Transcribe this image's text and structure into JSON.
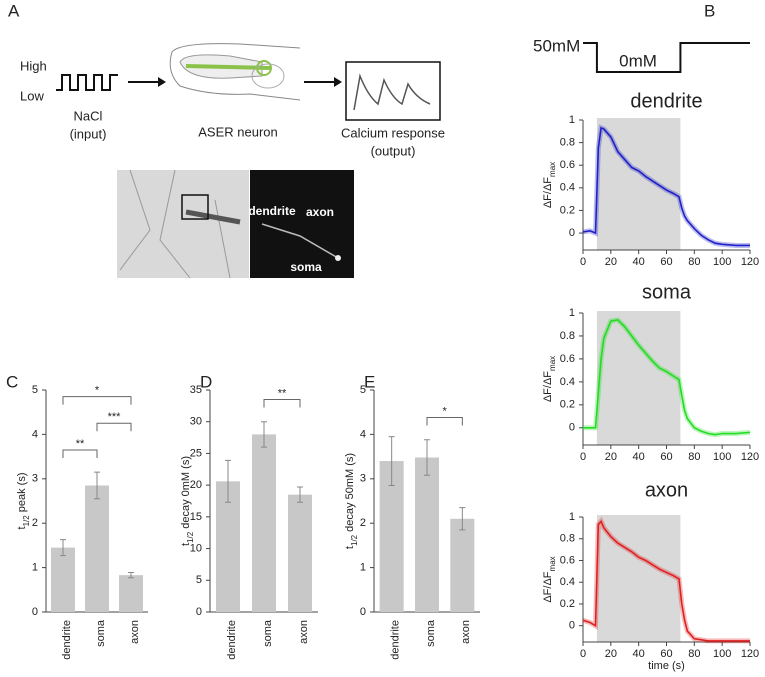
{
  "panel_labels": [
    "A",
    "B",
    "C",
    "D",
    "E"
  ],
  "schematic": {
    "nacl_levels": [
      "High",
      "Low"
    ],
    "input": [
      "NaCl",
      "(input)"
    ],
    "neuron": "ASER neuron",
    "output": [
      "Calcium response",
      "(output)"
    ],
    "image_labels": [
      "dendrite",
      "axon",
      "soma"
    ]
  },
  "stimulus": {
    "high": "50mM",
    "low": "0mM"
  },
  "chart_data": [
    {
      "type": "line",
      "title": "dendrite",
      "ylabel_parts": [
        "ΔF/ΔF",
        "max"
      ],
      "x": [
        0,
        5,
        9,
        11,
        13,
        15,
        20,
        25,
        30,
        35,
        40,
        45,
        50,
        55,
        60,
        65,
        69,
        71,
        73,
        75,
        80,
        85,
        90,
        95,
        100,
        110,
        120
      ],
      "series": [
        {
          "color": "#2020c8",
          "values": [
            0.01,
            0.02,
            0.0,
            0.75,
            0.93,
            0.92,
            0.85,
            0.72,
            0.65,
            0.58,
            0.55,
            0.5,
            0.46,
            0.42,
            0.38,
            0.35,
            0.32,
            0.22,
            0.15,
            0.11,
            0.04,
            -0.02,
            -0.06,
            -0.09,
            -0.1,
            -0.11,
            -0.11
          ]
        }
      ],
      "xlim": [
        0,
        120
      ],
      "xticks": [
        0,
        20,
        40,
        60,
        80,
        100,
        120
      ],
      "ylim": [
        -0.15,
        1
      ],
      "yticks": [
        0,
        0.2,
        0.4,
        0.6,
        0.8,
        1
      ],
      "shaded": [
        10,
        70
      ]
    },
    {
      "type": "line",
      "title": "soma",
      "ylabel_parts": [
        "ΔF/ΔF",
        "max"
      ],
      "x": [
        0,
        5,
        9,
        11,
        13,
        15,
        20,
        25,
        30,
        35,
        40,
        45,
        50,
        55,
        60,
        65,
        69,
        71,
        73,
        75,
        80,
        85,
        90,
        95,
        100,
        110,
        120
      ],
      "series": [
        {
          "color": "#22dd22",
          "values": [
            0,
            0,
            0,
            0.3,
            0.6,
            0.78,
            0.93,
            0.94,
            0.88,
            0.8,
            0.72,
            0.65,
            0.58,
            0.52,
            0.49,
            0.45,
            0.42,
            0.28,
            0.15,
            0.08,
            0.0,
            -0.03,
            -0.05,
            -0.06,
            -0.05,
            -0.05,
            -0.04
          ]
        }
      ],
      "xlim": [
        0,
        120
      ],
      "xticks": [
        0,
        20,
        40,
        60,
        80,
        100,
        120
      ],
      "ylim": [
        -0.15,
        1
      ],
      "yticks": [
        0,
        0.2,
        0.4,
        0.6,
        0.8,
        1
      ],
      "shaded": [
        10,
        70
      ]
    },
    {
      "type": "line",
      "title": "axon",
      "ylabel_parts": [
        "ΔF/ΔF",
        "max"
      ],
      "xlabel": "time (s)",
      "x": [
        0,
        5,
        9,
        11,
        13,
        15,
        20,
        25,
        30,
        35,
        40,
        45,
        50,
        55,
        60,
        65,
        69,
        71,
        73,
        75,
        80,
        85,
        90,
        95,
        100,
        110,
        120
      ],
      "series": [
        {
          "color": "#e02020",
          "values": [
            0.05,
            0.03,
            0.0,
            0.93,
            0.96,
            0.9,
            0.82,
            0.76,
            0.72,
            0.68,
            0.63,
            0.6,
            0.56,
            0.52,
            0.49,
            0.46,
            0.43,
            0.2,
            0.05,
            -0.05,
            -0.12,
            -0.13,
            -0.14,
            -0.14,
            -0.14,
            -0.14,
            -0.14
          ]
        }
      ],
      "xlim": [
        0,
        120
      ],
      "xticks": [
        0,
        20,
        40,
        60,
        80,
        100,
        120
      ],
      "ylim": [
        -0.15,
        1
      ],
      "yticks": [
        0,
        0.2,
        0.4,
        0.6,
        0.8,
        1
      ],
      "shaded": [
        10,
        70
      ]
    },
    {
      "type": "bar",
      "ylabel_parts": [
        "t",
        "1/2",
        " peak (s)"
      ],
      "categories": [
        "dendrite",
        "soma",
        "axon"
      ],
      "values": [
        1.45,
        2.85,
        0.83
      ],
      "errors": [
        0.18,
        0.3,
        0.06
      ],
      "color": "#c8c8c8",
      "ylim": [
        0,
        5
      ],
      "yticks": [
        0,
        1,
        2,
        3,
        4,
        5
      ],
      "comparisons": [
        {
          "pair": [
            0,
            1
          ],
          "label": "**"
        },
        {
          "pair": [
            1,
            2
          ],
          "label": "***"
        },
        {
          "pair": [
            0,
            2
          ],
          "label": "*"
        }
      ]
    },
    {
      "type": "bar",
      "ylabel_parts": [
        "t",
        "1/2",
        " decay 0mM (s)"
      ],
      "categories": [
        "dendrite",
        "soma",
        "axon"
      ],
      "values": [
        20.6,
        28,
        18.5
      ],
      "errors": [
        3.3,
        2,
        1.2
      ],
      "color": "#c8c8c8",
      "ylim": [
        0,
        35
      ],
      "yticks": [
        0,
        5,
        10,
        15,
        20,
        25,
        30,
        35
      ],
      "comparisons": [
        {
          "pair": [
            1,
            2
          ],
          "label": "**"
        }
      ]
    },
    {
      "type": "bar",
      "ylabel_parts": [
        "t",
        "1/2",
        " decay 50mM (s)"
      ],
      "categories": [
        "dendrite",
        "soma",
        "axon"
      ],
      "values": [
        3.4,
        3.48,
        2.1
      ],
      "errors": [
        0.55,
        0.4,
        0.25
      ],
      "color": "#c8c8c8",
      "ylim": [
        0,
        5
      ],
      "yticks": [
        0,
        1,
        2,
        3,
        4,
        5
      ],
      "comparisons": [
        {
          "pair": [
            1,
            2
          ],
          "label": "*"
        }
      ]
    }
  ]
}
